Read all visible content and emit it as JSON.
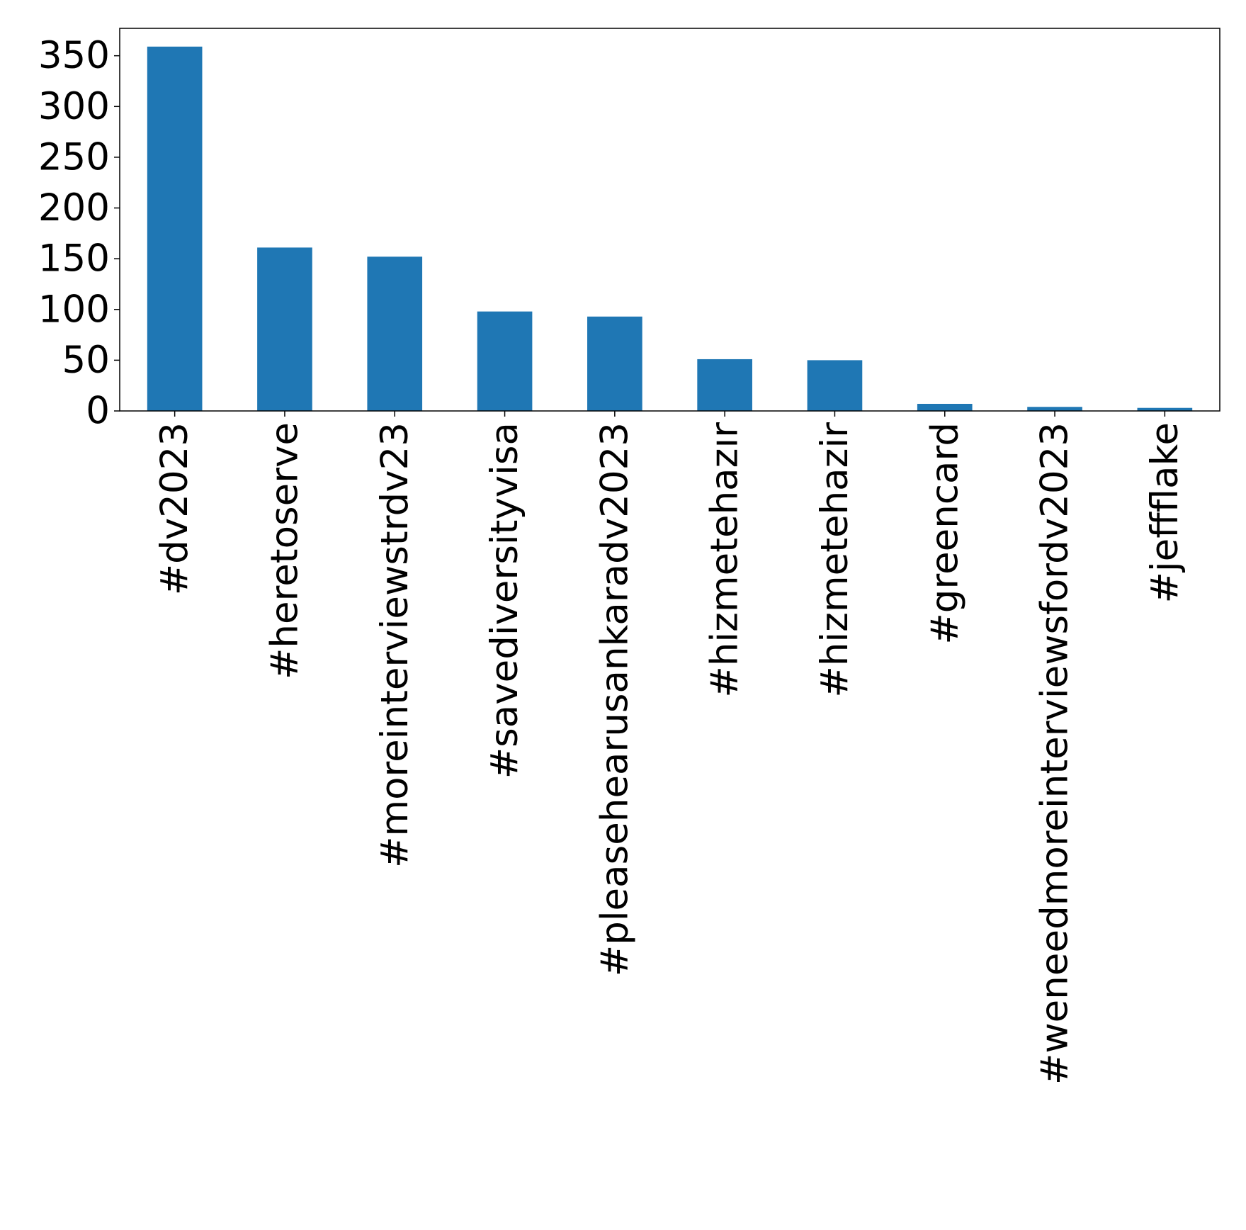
{
  "chart_data": {
    "type": "bar",
    "categories": [
      "#dv2023",
      "#heretoserve",
      "#moreinterviewstrdv23",
      "#savediversityvisa",
      "#pleasehearusankaradv2023",
      "#hizmetehazır",
      "#hizmetehazir",
      "#greencard",
      "#weneedmoreinterviewsfordv2023",
      "#jeffflake"
    ],
    "values": [
      359,
      161,
      152,
      98,
      93,
      51,
      50,
      7,
      4,
      3
    ],
    "title": "",
    "xlabel": "",
    "ylabel": "",
    "ylim": [
      0,
      377
    ],
    "yticks": [
      0,
      50,
      100,
      150,
      200,
      250,
      300,
      350
    ],
    "grid": false,
    "legend": "none",
    "bar_color": "#1f77b4"
  }
}
